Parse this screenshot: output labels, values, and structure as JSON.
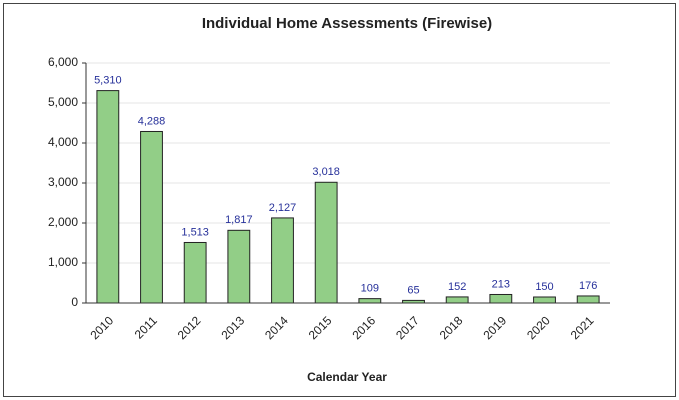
{
  "chart_data": {
    "type": "bar",
    "title": "Individual Home Assessments (Firewise)",
    "x_label": "Calendar Year",
    "categories": [
      "2010",
      "2011",
      "2012",
      "2013",
      "2014",
      "2015",
      "2016",
      "2017",
      "2018",
      "2019",
      "2020",
      "2021"
    ],
    "values": [
      5310,
      4288,
      1513,
      1817,
      2127,
      3018,
      109,
      65,
      152,
      213,
      150,
      176
    ],
    "value_labels": [
      "5,310",
      "4,288",
      "1,513",
      "1,817",
      "2,127",
      "3,018",
      "109",
      "65",
      "152",
      "213",
      "150",
      "176"
    ],
    "color": "#92ce87",
    "ylim": [
      0,
      6000
    ],
    "yticks": [
      0,
      {
        "value": 1000,
        "label": "1,000"
      },
      {
        "value": 2000,
        "label": "2,000"
      },
      {
        "value": 3000,
        "label": "3,000"
      },
      {
        "value": 4000,
        "label": "4,000"
      },
      {
        "value": 5000,
        "label": "5,000"
      },
      {
        "value": 6000,
        "label": "6,000"
      }
    ],
    "grid": true
  }
}
